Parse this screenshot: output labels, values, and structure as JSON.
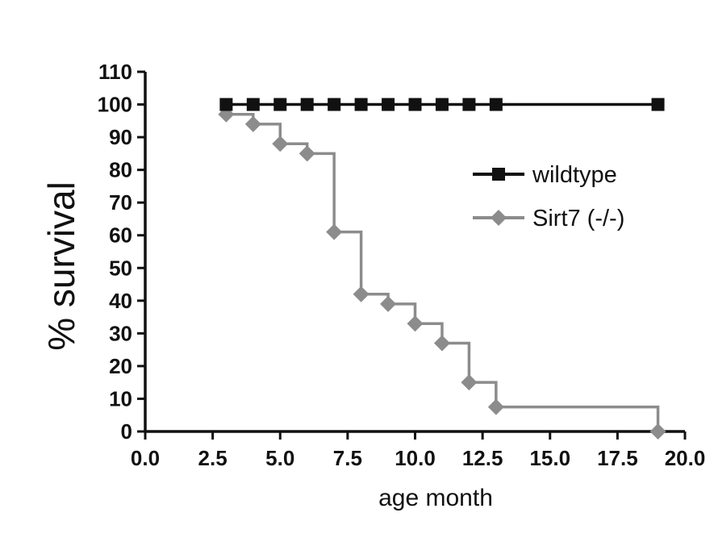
{
  "chart_data": {
    "type": "line",
    "title": "",
    "xlabel": "age month",
    "ylabel": "% survival",
    "xlim": [
      0,
      20
    ],
    "ylim": [
      0,
      110
    ],
    "xticks": [
      "0.0",
      "2.5",
      "5.0",
      "7.5",
      "10.0",
      "12.5",
      "15.0",
      "17.5",
      "20.0"
    ],
    "yticks": [
      "0",
      "10",
      "20",
      "30",
      "40",
      "50",
      "60",
      "70",
      "80",
      "90",
      "100",
      "110"
    ],
    "step": true,
    "legend_position": "right",
    "series": [
      {
        "name": "wildtype",
        "color": "#111111",
        "marker": "square",
        "x": [
          3,
          4,
          5,
          6,
          7,
          8,
          9,
          10,
          11,
          12,
          13,
          19
        ],
        "y": [
          100,
          100,
          100,
          100,
          100,
          100,
          100,
          100,
          100,
          100,
          100,
          100
        ]
      },
      {
        "name": "Sirt7 (-/-)",
        "color": "#8c8c8c",
        "marker": "diamond",
        "x": [
          3,
          4,
          5,
          6,
          7,
          8,
          9,
          10,
          11,
          12,
          13,
          19
        ],
        "y": [
          97,
          94,
          88,
          85,
          61,
          42,
          39,
          33,
          27,
          15,
          7.5,
          0
        ]
      }
    ]
  }
}
